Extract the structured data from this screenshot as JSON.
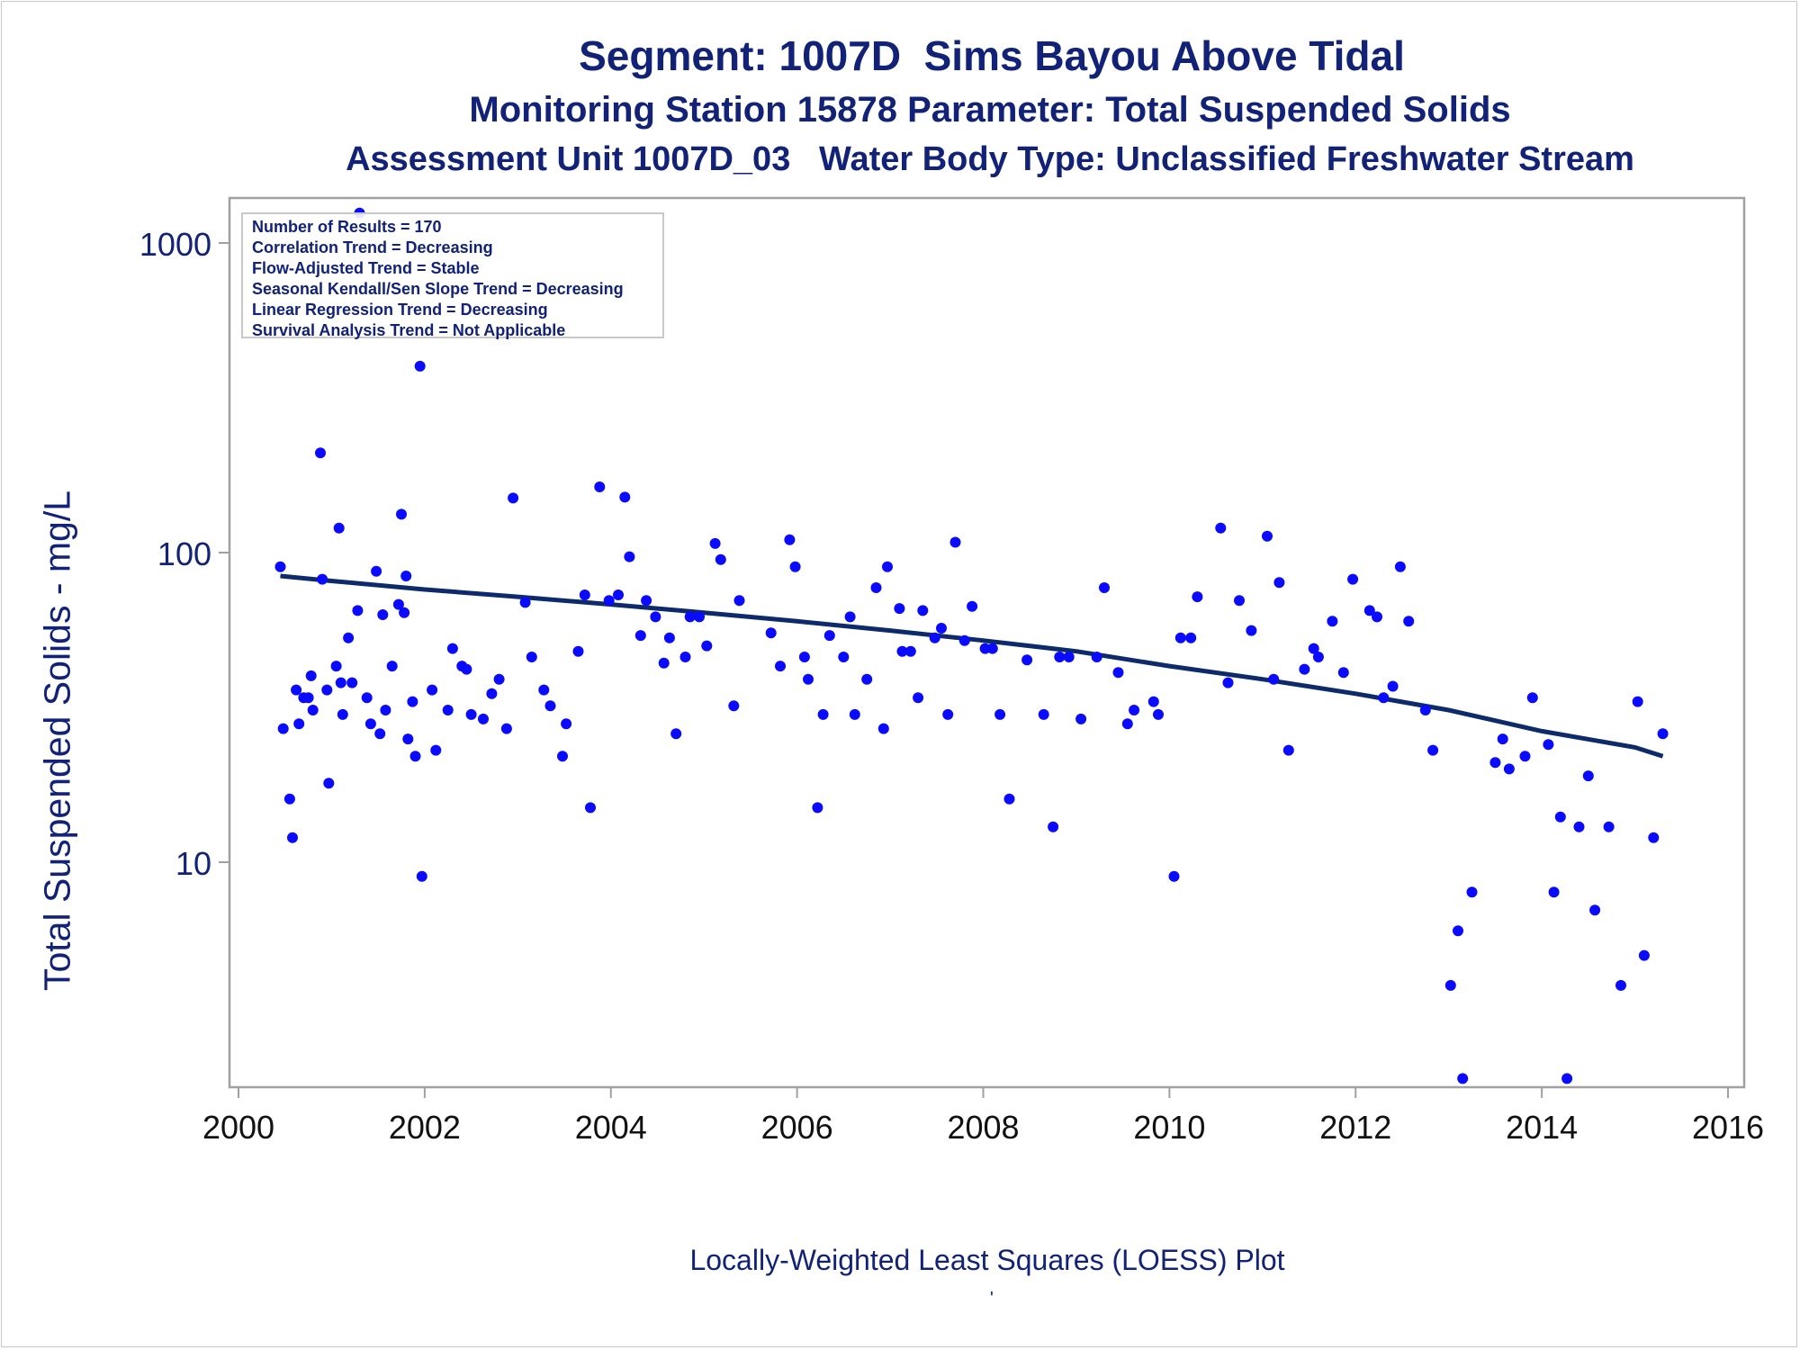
{
  "titles": {
    "line1": "Segment: 1007D  Sims Bayou Above Tidal",
    "line2": "Monitoring Station 15878 Parameter: Total Suspended Solids",
    "line3": "Assessment Unit 1007D_03   Water Body Type: Unclassified Freshwater Stream"
  },
  "footnote": "Locally-Weighted Least Squares (LOESS) Plot",
  "footnote_mark": "'",
  "stats": [
    "Number of Results = 170",
    "Correlation Trend = Decreasing",
    "Flow-Adjusted Trend = Stable",
    "Seasonal Kendall/Sen Slope Trend = Decreasing",
    "Linear Regression Trend = Decreasing",
    "Survival Analysis Trend = Not Applicable"
  ],
  "colors": {
    "text": "#112277",
    "points": "#0a0aff",
    "trend_line": "#0d2a6b",
    "frame": "#a0a0a0"
  },
  "chart_data": {
    "type": "scatter",
    "ylabel": "Total Suspended Solids - mg/L",
    "xlabel": "",
    "yscale": "log",
    "xlim": [
      2000,
      2016
    ],
    "ylim": [
      2,
      1400
    ],
    "xticks": [
      2000,
      2002,
      2004,
      2006,
      2008,
      2010,
      2012,
      2014,
      2016
    ],
    "yticks": [
      10,
      100,
      1000
    ],
    "grid": false,
    "series": [
      {
        "name": "",
        "type": "scatter",
        "points": [
          [
            2000.45,
            90
          ],
          [
            2000.48,
            27
          ],
          [
            2000.55,
            16
          ],
          [
            2000.58,
            12
          ],
          [
            2000.62,
            36
          ],
          [
            2000.65,
            28
          ],
          [
            2000.7,
            34
          ],
          [
            2000.75,
            34
          ],
          [
            2000.78,
            40
          ],
          [
            2000.8,
            31
          ],
          [
            2000.88,
            210
          ],
          [
            2000.9,
            82
          ],
          [
            2000.95,
            36
          ],
          [
            2000.97,
            18
          ],
          [
            2001.05,
            43
          ],
          [
            2001.08,
            120
          ],
          [
            2001.1,
            38
          ],
          [
            2001.12,
            30
          ],
          [
            2001.18,
            53
          ],
          [
            2001.22,
            38
          ],
          [
            2001.28,
            65
          ],
          [
            2001.3,
            1250
          ],
          [
            2001.38,
            34
          ],
          [
            2001.42,
            28
          ],
          [
            2001.48,
            87
          ],
          [
            2001.52,
            26
          ],
          [
            2001.55,
            63
          ],
          [
            2001.58,
            31
          ],
          [
            2001.65,
            43
          ],
          [
            2001.72,
            68
          ],
          [
            2001.75,
            133
          ],
          [
            2001.78,
            64
          ],
          [
            2001.8,
            84
          ],
          [
            2001.82,
            25
          ],
          [
            2001.87,
            33
          ],
          [
            2001.9,
            22
          ],
          [
            2001.95,
            400
          ],
          [
            2001.97,
            9
          ],
          [
            2002.08,
            36
          ],
          [
            2002.12,
            23
          ],
          [
            2002.25,
            31
          ],
          [
            2002.3,
            49
          ],
          [
            2002.4,
            43
          ],
          [
            2002.45,
            42
          ],
          [
            2002.5,
            30
          ],
          [
            2002.63,
            29
          ],
          [
            2002.72,
            35
          ],
          [
            2002.8,
            39
          ],
          [
            2002.88,
            27
          ],
          [
            2002.95,
            150
          ],
          [
            2003.08,
            69
          ],
          [
            2003.15,
            46
          ],
          [
            2003.28,
            36
          ],
          [
            2003.35,
            32
          ],
          [
            2003.48,
            22
          ],
          [
            2003.52,
            28
          ],
          [
            2003.65,
            48
          ],
          [
            2003.72,
            73
          ],
          [
            2003.78,
            15
          ],
          [
            2003.88,
            163
          ],
          [
            2003.98,
            70
          ],
          [
            2004.08,
            73
          ],
          [
            2004.15,
            151
          ],
          [
            2004.2,
            97
          ],
          [
            2004.32,
            54
          ],
          [
            2004.38,
            70
          ],
          [
            2004.48,
            62
          ],
          [
            2004.57,
            44
          ],
          [
            2004.63,
            53
          ],
          [
            2004.7,
            26
          ],
          [
            2004.8,
            46
          ],
          [
            2004.85,
            62
          ],
          [
            2004.95,
            62
          ],
          [
            2005.03,
            50
          ],
          [
            2005.12,
            107
          ],
          [
            2005.18,
            95
          ],
          [
            2005.32,
            32
          ],
          [
            2005.38,
            70
          ],
          [
            2005.72,
            55
          ],
          [
            2005.82,
            43
          ],
          [
            2005.92,
            110
          ],
          [
            2005.98,
            90
          ],
          [
            2006.08,
            46
          ],
          [
            2006.12,
            39
          ],
          [
            2006.22,
            15
          ],
          [
            2006.28,
            30
          ],
          [
            2006.35,
            54
          ],
          [
            2006.5,
            46
          ],
          [
            2006.57,
            62
          ],
          [
            2006.62,
            30
          ],
          [
            2006.75,
            39
          ],
          [
            2006.85,
            77
          ],
          [
            2006.93,
            27
          ],
          [
            2006.97,
            90
          ],
          [
            2007.1,
            66
          ],
          [
            2007.13,
            48
          ],
          [
            2007.22,
            48
          ],
          [
            2007.3,
            34
          ],
          [
            2007.35,
            65
          ],
          [
            2007.48,
            53
          ],
          [
            2007.55,
            57
          ],
          [
            2007.62,
            30
          ],
          [
            2007.7,
            108
          ],
          [
            2007.8,
            52
          ],
          [
            2007.88,
            67
          ],
          [
            2008.02,
            49
          ],
          [
            2008.1,
            49
          ],
          [
            2008.18,
            30
          ],
          [
            2008.28,
            16
          ],
          [
            2008.47,
            45
          ],
          [
            2008.65,
            30
          ],
          [
            2008.75,
            13
          ],
          [
            2008.82,
            46
          ],
          [
            2008.92,
            46
          ],
          [
            2009.05,
            29
          ],
          [
            2009.22,
            46
          ],
          [
            2009.3,
            77
          ],
          [
            2009.45,
            41
          ],
          [
            2009.55,
            28
          ],
          [
            2009.62,
            31
          ],
          [
            2009.83,
            33
          ],
          [
            2009.88,
            30
          ],
          [
            2010.05,
            9
          ],
          [
            2010.12,
            53
          ],
          [
            2010.23,
            53
          ],
          [
            2010.3,
            72
          ],
          [
            2010.55,
            120
          ],
          [
            2010.63,
            38
          ],
          [
            2010.75,
            70
          ],
          [
            2010.88,
            56
          ],
          [
            2011.05,
            113
          ],
          [
            2011.12,
            39
          ],
          [
            2011.18,
            80
          ],
          [
            2011.28,
            23
          ],
          [
            2011.45,
            42
          ],
          [
            2011.55,
            49
          ],
          [
            2011.6,
            46
          ],
          [
            2011.75,
            60
          ],
          [
            2011.87,
            41
          ],
          [
            2011.97,
            82
          ],
          [
            2012.15,
            65
          ],
          [
            2012.23,
            62
          ],
          [
            2012.3,
            34
          ],
          [
            2012.4,
            37
          ],
          [
            2012.48,
            90
          ],
          [
            2012.57,
            60
          ],
          [
            2012.75,
            31
          ],
          [
            2012.83,
            23
          ],
          [
            2013.02,
            4
          ],
          [
            2013.1,
            6
          ],
          [
            2013.15,
            2
          ],
          [
            2013.25,
            8
          ],
          [
            2013.5,
            21
          ],
          [
            2013.58,
            25
          ],
          [
            2013.65,
            20
          ],
          [
            2013.82,
            22
          ],
          [
            2013.9,
            34
          ],
          [
            2014.07,
            24
          ],
          [
            2014.13,
            8
          ],
          [
            2014.2,
            14
          ],
          [
            2014.27,
            2
          ],
          [
            2014.4,
            13
          ],
          [
            2014.5,
            19
          ],
          [
            2014.57,
            7
          ],
          [
            2014.72,
            13
          ],
          [
            2014.85,
            4
          ],
          [
            2015.03,
            33
          ],
          [
            2015.1,
            5
          ],
          [
            2015.2,
            12
          ],
          [
            2015.3,
            26
          ]
        ]
      },
      {
        "name": "",
        "type": "line",
        "points": [
          [
            2000.45,
            84
          ],
          [
            2001.0,
            81
          ],
          [
            2002.0,
            76
          ],
          [
            2003.0,
            72
          ],
          [
            2004.0,
            68
          ],
          [
            2005.0,
            64
          ],
          [
            2006.0,
            60
          ],
          [
            2007.0,
            56
          ],
          [
            2008.0,
            52
          ],
          [
            2009.0,
            48
          ],
          [
            2010.0,
            43
          ],
          [
            2011.0,
            39
          ],
          [
            2012.0,
            35
          ],
          [
            2013.0,
            31
          ],
          [
            2014.0,
            26.5
          ],
          [
            2015.0,
            23.5
          ],
          [
            2015.3,
            22
          ]
        ]
      }
    ]
  }
}
